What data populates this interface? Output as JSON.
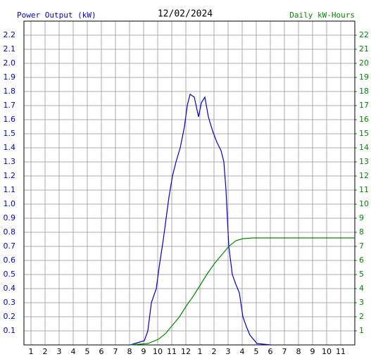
{
  "chart_data": {
    "type": "line",
    "title": "12/02/2024",
    "y_label": "Power Output (kW)",
    "y2_label": "Daily kW-Hours",
    "xlim": [
      0.5,
      24
    ],
    "xticks": [
      1,
      2,
      3,
      4,
      5,
      6,
      7,
      8,
      9,
      10,
      11,
      12,
      {
        "value": 13,
        "label": "1"
      },
      {
        "value": 14,
        "label": "2"
      },
      {
        "value": 15,
        "label": "3"
      },
      {
        "value": 16,
        "label": "4"
      },
      {
        "value": 17,
        "label": "5"
      },
      {
        "value": 18,
        "label": "6"
      },
      {
        "value": 19,
        "label": "7"
      },
      {
        "value": 20,
        "label": "8"
      },
      {
        "value": 21,
        "label": "9"
      },
      {
        "value": 22,
        "label": "10"
      },
      {
        "value": 23,
        "label": "11"
      }
    ],
    "ylim": [
      0,
      2.3
    ],
    "yticks": [
      0.1,
      0.2,
      0.3,
      0.4,
      0.5,
      0.6,
      0.7,
      0.8,
      0.9,
      {
        "value": 1,
        "label": "1.0"
      },
      1.1,
      1.2,
      1.3,
      1.4,
      1.5,
      1.6,
      1.7,
      1.8,
      1.9,
      {
        "value": 2,
        "label": "2.0"
      },
      2.1,
      2.2
    ],
    "y2lim": [
      0,
      23
    ],
    "y2ticks": [
      1,
      2,
      3,
      4,
      5,
      6,
      7,
      8,
      9,
      10,
      11,
      12,
      13,
      14,
      15,
      16,
      17,
      18,
      19,
      20,
      21,
      22
    ],
    "grid": true,
    "series": [
      {
        "name": "Power Output",
        "color": "#0000cc",
        "x": [
          8.05,
          9.05,
          9.3,
          9.55,
          9.9,
          10.1,
          10.4,
          10.6,
          10.8,
          11.05,
          11.3,
          11.6,
          11.9,
          12.1,
          12.3,
          12.6,
          12.9,
          13.1,
          13.35,
          13.6,
          13.9,
          14.2,
          14.5,
          14.7,
          14.85,
          15.05,
          15.3,
          15.55,
          15.8,
          16.05,
          16.3,
          16.55,
          16.8,
          17.05,
          18.05
        ],
        "values": [
          0,
          0.03,
          0.1,
          0.3,
          0.4,
          0.55,
          0.75,
          0.9,
          1.05,
          1.2,
          1.3,
          1.4,
          1.55,
          1.7,
          1.78,
          1.76,
          1.62,
          1.72,
          1.76,
          1.62,
          1.52,
          1.44,
          1.38,
          1.3,
          1.1,
          0.7,
          0.5,
          0.43,
          0.37,
          0.2,
          0.13,
          0.07,
          0.04,
          0.01,
          0
        ]
      },
      {
        "name": "Daily kW-Hours",
        "color": "#008800",
        "axis": "y2",
        "x": [
          8.05,
          9.3,
          10.05,
          10.55,
          11.05,
          11.55,
          12.05,
          12.55,
          13.05,
          13.55,
          14.05,
          14.55,
          15.05,
          15.55,
          16.05,
          16.8,
          24
        ],
        "values": [
          0,
          0.1,
          0.4,
          0.8,
          1.4,
          2.0,
          2.8,
          3.5,
          4.3,
          5.1,
          5.8,
          6.4,
          7.0,
          7.4,
          7.55,
          7.6,
          7.6
        ]
      }
    ]
  }
}
